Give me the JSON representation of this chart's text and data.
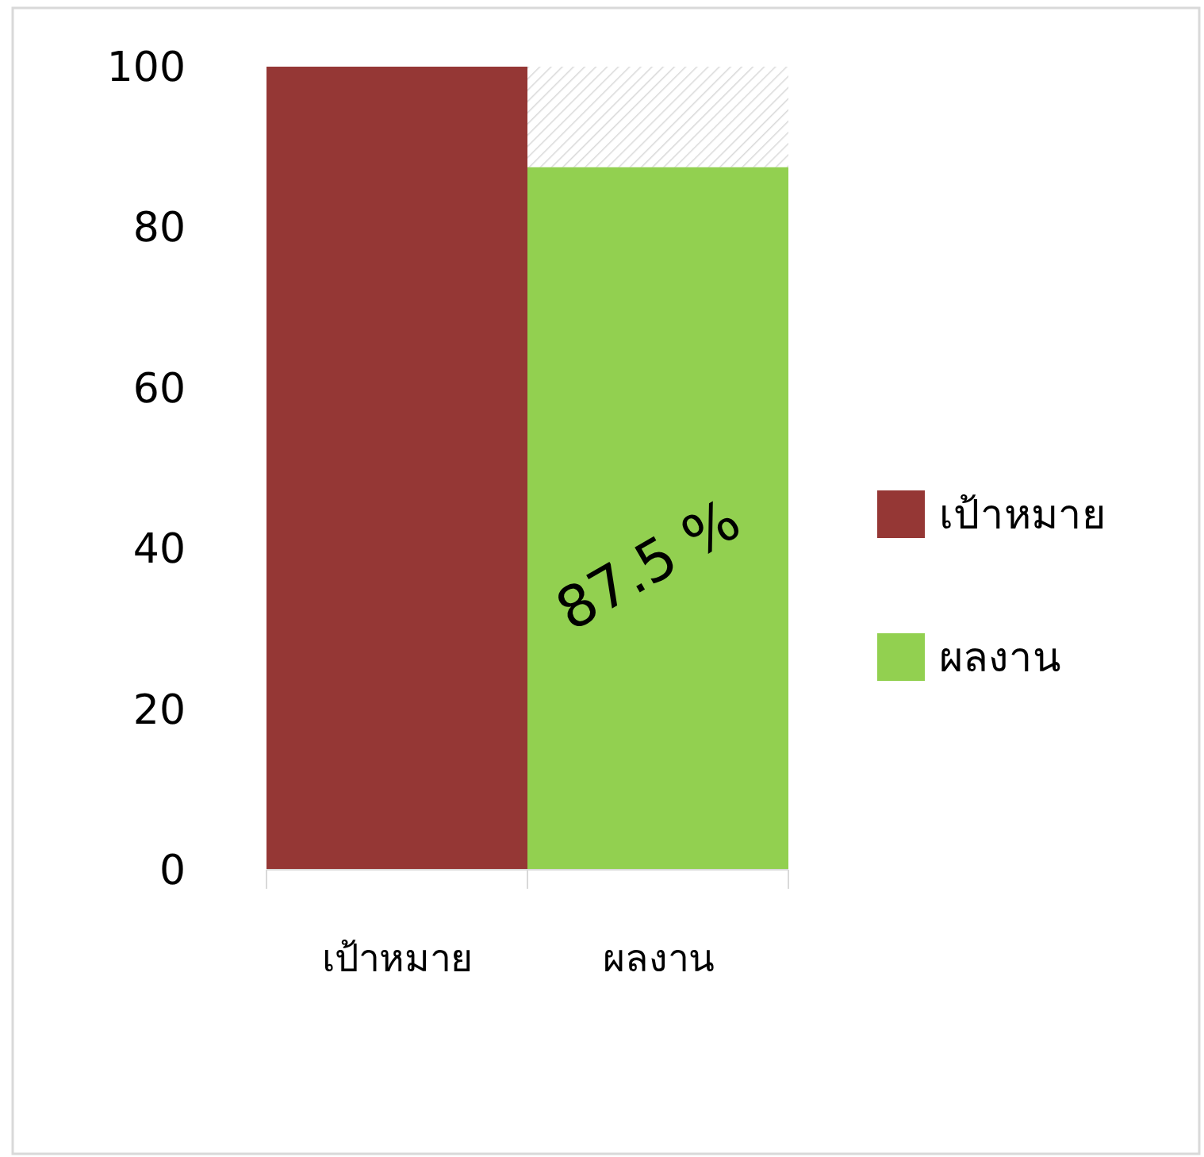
{
  "chart_data": {
    "type": "bar",
    "stacked": true,
    "categories": [
      "เป้าหมาย",
      "ผลงาน"
    ],
    "series": [
      {
        "name": "เป้าหมาย",
        "color": "#953735",
        "values": [
          100,
          null
        ]
      },
      {
        "name": "ผลงาน",
        "color": "#92d050",
        "values": [
          null,
          87.5
        ],
        "value_labels": [
          null,
          "87.5 %"
        ]
      },
      {
        "color": "#d9d9d9",
        "values": [
          null,
          12.5
        ]
      }
    ],
    "ylim": [
      0,
      100
    ],
    "yticks": [
      0,
      20,
      40,
      60,
      80,
      100
    ],
    "grid": false,
    "legend": "right"
  }
}
